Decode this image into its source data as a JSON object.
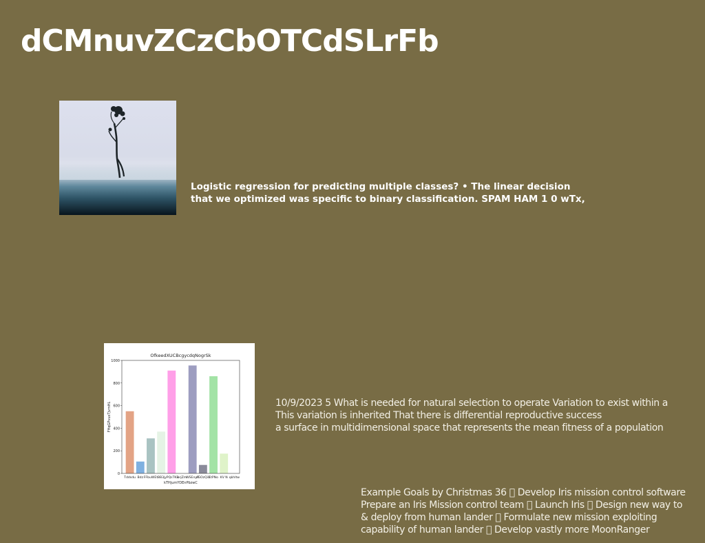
{
  "page": {
    "title": "dCMnuvZCzCbOTCdSLrFb",
    "background": "#786c45"
  },
  "photo": {
    "icon": "misty-tree-photo"
  },
  "blocks": {
    "bold": {
      "line1": "Logistic regression for predicting multiple classes? • The linear decision",
      "line2": "that we optimized was specific to binary classification. SPAM HAM 1 0 wTx,"
    },
    "para1": {
      "line1": "10/9/2023 5 What is needed for natural selection to operate Variation to exist within a",
      "line2": "This variation is inherited That there is differential reproductive success",
      "line3": "a surface in multidimensional space that represents the mean fitness of a population"
    },
    "para2": {
      "line1": "Example Goals by Christmas 36 \u0000 Develop Iris mission control software",
      "line2": "Prepare an Iris Mission control team \u0000 Launch Iris \u0000 Design new way to",
      "line3": "& deploy from human lander \u0000 Formulate new mission exploiting",
      "line4": "capability of human lander \u0000 Develop vastly more MoonRanger"
    }
  },
  "chart_data": {
    "type": "bar",
    "title": "OfkeedXUCBcgycdqNogrSk",
    "xlabel": "kTHjumYDEnPbzwC",
    "ylabel": "FHqGPvuxTjvmHL",
    "ylim": [
      0,
      1000
    ],
    "yticks": [
      0,
      200,
      400,
      600,
      800,
      1000
    ],
    "categories": [
      "Tddsdu",
      "Bdz",
      "FFbuWEt",
      "BB3j",
      "yPQsTKB",
      "orjZm",
      "WSEnyR",
      "dGOzQiX",
      "EtPNo",
      "KV N",
      "qkhltw"
    ],
    "tick_labels": [
      "Tddsdu",
      "Bdz",
      "FFbuWEt",
      "BB3j",
      "yPQsTKB",
      "orjZm",
      "WSEnyR",
      "dGOzQiX",
      "EtPNo",
      "KV N",
      "qkhltw"
    ],
    "values": [
      550,
      105,
      310,
      370,
      910,
      0,
      955,
      75,
      860,
      175,
      0
    ],
    "colors": [
      "#e3a385",
      "#7fb0e0",
      "#a9c3c2",
      "#e5f3e5",
      "#ff9fe8",
      "#ffffff",
      "#9d9dc0",
      "#8a8a9a",
      "#a3e3a6",
      "#dff3c9",
      "#ffffff"
    ]
  }
}
